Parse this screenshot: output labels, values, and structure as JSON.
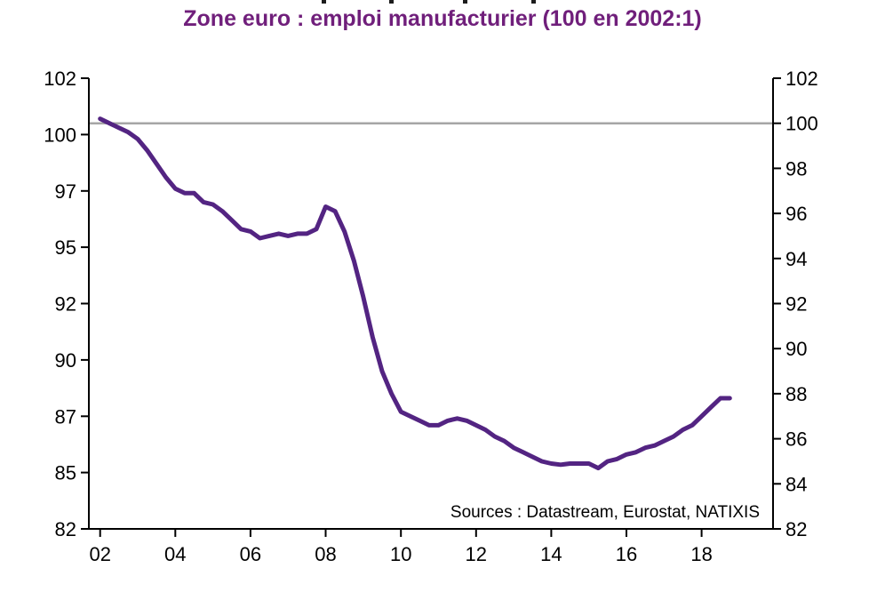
{
  "page": {
    "background": "#ffffff"
  },
  "chart_data": {
    "type": "line",
    "title": "Zone euro : emploi manufacturier (100 en 2002:1)",
    "source": "Sources : Datastream, Eurostat, NATIXIS",
    "ylim": [
      82,
      102
    ],
    "xlim": [
      2001.7,
      2019.9
    ],
    "reference_line": 100,
    "grid": false,
    "legend_position": "none",
    "colors": {
      "line": "#532482",
      "title": "#701f7b",
      "reference": "#a6a6a6",
      "axis": "#000000"
    },
    "axes": {
      "left": {
        "ticks": [
          {
            "at": 82,
            "label": "82"
          },
          {
            "at": 84.5,
            "label": "85"
          },
          {
            "at": 87,
            "label": "87"
          },
          {
            "at": 89.5,
            "label": "90"
          },
          {
            "at": 92,
            "label": "92"
          },
          {
            "at": 94.5,
            "label": "95"
          },
          {
            "at": 97,
            "label": "97"
          },
          {
            "at": 99.5,
            "label": "100"
          },
          {
            "at": 102,
            "label": "102"
          }
        ]
      },
      "right": {
        "ticks": [
          {
            "at": 82,
            "label": "82"
          },
          {
            "at": 84,
            "label": "84"
          },
          {
            "at": 86,
            "label": "86"
          },
          {
            "at": 88,
            "label": "88"
          },
          {
            "at": 90,
            "label": "90"
          },
          {
            "at": 92,
            "label": "92"
          },
          {
            "at": 94,
            "label": "94"
          },
          {
            "at": 96,
            "label": "96"
          },
          {
            "at": 98,
            "label": "98"
          },
          {
            "at": 100,
            "label": "100"
          },
          {
            "at": 102,
            "label": "102"
          }
        ]
      },
      "x": {
        "ticks": [
          {
            "at": 2002,
            "label": "02"
          },
          {
            "at": 2004,
            "label": "04"
          },
          {
            "at": 2006,
            "label": "06"
          },
          {
            "at": 2008,
            "label": "08"
          },
          {
            "at": 2010,
            "label": "10"
          },
          {
            "at": 2012,
            "label": "12"
          },
          {
            "at": 2014,
            "label": "14"
          },
          {
            "at": 2016,
            "label": "16"
          },
          {
            "at": 2018,
            "label": "18"
          }
        ]
      }
    },
    "series": [
      {
        "name": "Zone euro : emploi manufacturier (100 en 2002:1)",
        "points": [
          [
            2002.0,
            100.2
          ],
          [
            2002.25,
            100.0
          ],
          [
            2002.5,
            99.8
          ],
          [
            2002.75,
            99.6
          ],
          [
            2003.0,
            99.3
          ],
          [
            2003.25,
            98.8
          ],
          [
            2003.5,
            98.2
          ],
          [
            2003.75,
            97.6
          ],
          [
            2004.0,
            97.1
          ],
          [
            2004.25,
            96.9
          ],
          [
            2004.5,
            96.9
          ],
          [
            2004.75,
            96.5
          ],
          [
            2005.0,
            96.4
          ],
          [
            2005.25,
            96.1
          ],
          [
            2005.5,
            95.7
          ],
          [
            2005.75,
            95.3
          ],
          [
            2006.0,
            95.2
          ],
          [
            2006.25,
            94.9
          ],
          [
            2006.5,
            95.0
          ],
          [
            2006.75,
            95.1
          ],
          [
            2007.0,
            95.0
          ],
          [
            2007.25,
            95.1
          ],
          [
            2007.5,
            95.1
          ],
          [
            2007.75,
            95.3
          ],
          [
            2008.0,
            96.3
          ],
          [
            2008.25,
            96.1
          ],
          [
            2008.5,
            95.2
          ],
          [
            2008.75,
            93.9
          ],
          [
            2009.0,
            92.3
          ],
          [
            2009.25,
            90.5
          ],
          [
            2009.5,
            89.0
          ],
          [
            2009.75,
            88.0
          ],
          [
            2010.0,
            87.2
          ],
          [
            2010.25,
            87.0
          ],
          [
            2010.5,
            86.8
          ],
          [
            2010.75,
            86.6
          ],
          [
            2011.0,
            86.6
          ],
          [
            2011.25,
            86.8
          ],
          [
            2011.5,
            86.9
          ],
          [
            2011.75,
            86.8
          ],
          [
            2012.0,
            86.6
          ],
          [
            2012.25,
            86.4
          ],
          [
            2012.5,
            86.1
          ],
          [
            2012.75,
            85.9
          ],
          [
            2013.0,
            85.6
          ],
          [
            2013.25,
            85.4
          ],
          [
            2013.5,
            85.2
          ],
          [
            2013.75,
            85.0
          ],
          [
            2014.0,
            84.9
          ],
          [
            2014.25,
            84.85
          ],
          [
            2014.5,
            84.9
          ],
          [
            2014.75,
            84.9
          ],
          [
            2015.0,
            84.9
          ],
          [
            2015.25,
            84.7
          ],
          [
            2015.5,
            85.0
          ],
          [
            2015.75,
            85.1
          ],
          [
            2016.0,
            85.3
          ],
          [
            2016.25,
            85.4
          ],
          [
            2016.5,
            85.6
          ],
          [
            2016.75,
            85.7
          ],
          [
            2017.0,
            85.9
          ],
          [
            2017.25,
            86.1
          ],
          [
            2017.5,
            86.4
          ],
          [
            2017.75,
            86.6
          ],
          [
            2018.0,
            87.0
          ],
          [
            2018.25,
            87.4
          ],
          [
            2018.5,
            87.8
          ],
          [
            2018.75,
            87.8
          ]
        ]
      }
    ]
  }
}
